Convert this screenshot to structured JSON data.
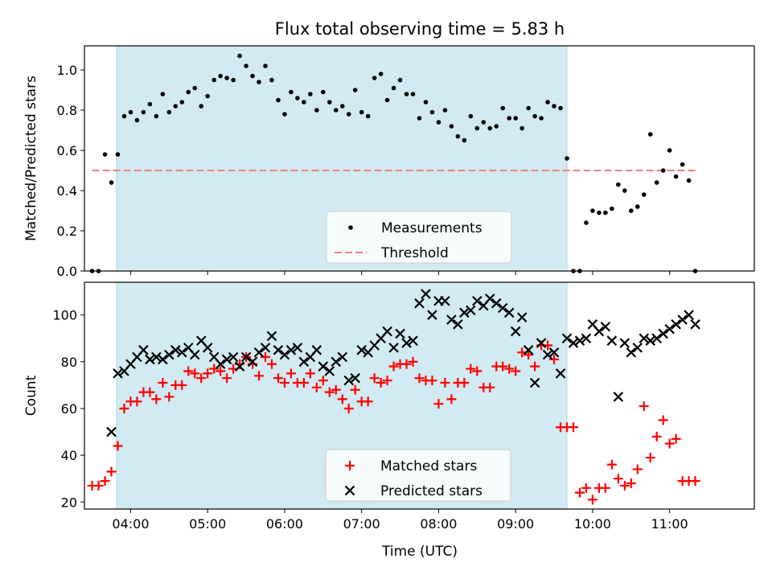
{
  "title": "Flux total observing time = 5.83 h",
  "xlabel": "Time (UTC)",
  "x_tick_labels": [
    "04:00",
    "05:00",
    "06:00",
    "07:00",
    "08:00",
    "09:00",
    "10:00",
    "11:00"
  ],
  "colors": {
    "shade": "#add8e6",
    "matched": "#ff0000",
    "predicted": "#000000",
    "threshold": "#f08080",
    "measurements": "#000000"
  },
  "chart_data": [
    {
      "type": "scatter",
      "ylabel": "Matched/Predicted stars",
      "xlim": [
        "03:24",
        "12:06"
      ],
      "ylim": [
        0,
        1.12
      ],
      "y_ticks": [
        "0.0",
        "0.2",
        "0.4",
        "0.6",
        "0.8",
        "1.0"
      ],
      "shaded_interval": [
        "03:49",
        "09:40"
      ],
      "legend": {
        "placement": "lower-center",
        "entries": [
          "Measurements",
          "Threshold"
        ]
      },
      "threshold": {
        "name": "Threshold",
        "y": 0.5,
        "x_range": [
          "03:30",
          "11:22"
        ]
      },
      "series": [
        {
          "name": "Measurements",
          "x": [
            "03:30",
            "03:35",
            "03:40",
            "03:45",
            "03:50",
            "03:55",
            "04:00",
            "04:05",
            "04:10",
            "04:15",
            "04:20",
            "04:25",
            "04:30",
            "04:35",
            "04:40",
            "04:45",
            "04:50",
            "04:55",
            "05:00",
            "05:05",
            "05:10",
            "05:15",
            "05:20",
            "05:25",
            "05:30",
            "05:35",
            "05:40",
            "05:45",
            "05:50",
            "05:55",
            "06:00",
            "06:05",
            "06:10",
            "06:15",
            "06:20",
            "06:25",
            "06:30",
            "06:35",
            "06:40",
            "06:45",
            "06:50",
            "06:55",
            "07:00",
            "07:05",
            "07:10",
            "07:15",
            "07:20",
            "07:25",
            "07:30",
            "07:35",
            "07:40",
            "07:45",
            "07:50",
            "07:55",
            "08:00",
            "08:05",
            "08:10",
            "08:15",
            "08:20",
            "08:25",
            "08:30",
            "08:35",
            "08:40",
            "08:45",
            "08:50",
            "08:55",
            "09:00",
            "09:05",
            "09:10",
            "09:15",
            "09:20",
            "09:25",
            "09:30",
            "09:35",
            "09:40",
            "09:45",
            "09:50",
            "09:55",
            "10:00",
            "10:05",
            "10:10",
            "10:15",
            "10:20",
            "10:25",
            "10:30",
            "10:35",
            "10:40",
            "10:45",
            "10:50",
            "10:55",
            "11:00",
            "11:05",
            "11:10",
            "11:15",
            "11:20"
          ],
          "y": [
            0.0,
            0.0,
            0.58,
            0.44,
            0.58,
            0.77,
            0.79,
            0.75,
            0.79,
            0.83,
            0.77,
            0.88,
            0.79,
            0.82,
            0.84,
            0.89,
            0.91,
            0.82,
            0.87,
            0.95,
            0.97,
            0.96,
            0.95,
            1.07,
            1.02,
            0.97,
            0.94,
            1.02,
            0.95,
            0.85,
            0.78,
            0.89,
            0.86,
            0.84,
            0.88,
            0.8,
            0.89,
            0.84,
            0.8,
            0.82,
            0.78,
            0.9,
            0.79,
            0.77,
            0.96,
            0.98,
            0.85,
            0.91,
            0.95,
            0.88,
            0.88,
            0.76,
            0.84,
            0.79,
            0.74,
            0.8,
            0.72,
            0.67,
            0.65,
            0.77,
            0.71,
            0.74,
            0.71,
            0.72,
            0.81,
            0.76,
            0.76,
            0.71,
            0.81,
            0.77,
            0.76,
            0.84,
            0.82,
            0.81,
            0.56,
            0.0,
            0.0,
            0.24,
            0.3,
            0.29,
            0.29,
            0.31,
            0.43,
            0.4,
            0.3,
            0.32,
            0.38,
            0.68,
            0.44,
            0.5,
            0.6,
            0.47,
            0.53,
            0.45,
            0.0
          ]
        }
      ]
    },
    {
      "type": "scatter",
      "ylabel": "Count",
      "xlabel": "Time (UTC)",
      "xlim": [
        "03:24",
        "12:06"
      ],
      "ylim": [
        17,
        114
      ],
      "y_ticks": [
        "20",
        "40",
        "60",
        "80",
        "100"
      ],
      "shaded_interval": [
        "03:49",
        "09:40"
      ],
      "legend": {
        "placement": "lower-center",
        "entries": [
          "Matched stars",
          "Predicted stars"
        ]
      },
      "series": [
        {
          "name": "Matched stars",
          "marker": "+",
          "x": [
            "03:30",
            "03:35",
            "03:40",
            "03:45",
            "03:50",
            "03:55",
            "04:00",
            "04:05",
            "04:10",
            "04:15",
            "04:20",
            "04:25",
            "04:30",
            "04:35",
            "04:40",
            "04:45",
            "04:50",
            "04:55",
            "05:00",
            "05:05",
            "05:10",
            "05:15",
            "05:20",
            "05:25",
            "05:30",
            "05:35",
            "05:40",
            "05:45",
            "05:50",
            "05:55",
            "06:00",
            "06:05",
            "06:10",
            "06:15",
            "06:20",
            "06:25",
            "06:30",
            "06:35",
            "06:40",
            "06:45",
            "06:50",
            "06:55",
            "07:00",
            "07:05",
            "07:10",
            "07:15",
            "07:20",
            "07:25",
            "07:30",
            "07:35",
            "07:40",
            "07:45",
            "07:50",
            "07:55",
            "08:00",
            "08:05",
            "08:10",
            "08:15",
            "08:20",
            "08:25",
            "08:30",
            "08:35",
            "08:40",
            "08:45",
            "08:50",
            "08:55",
            "09:00",
            "09:05",
            "09:10",
            "09:15",
            "09:20",
            "09:25",
            "09:30",
            "09:35",
            "09:40",
            "09:45",
            "09:50",
            "09:55",
            "10:00",
            "10:05",
            "10:10",
            "10:15",
            "10:20",
            "10:25",
            "10:30",
            "10:35",
            "10:40",
            "10:45",
            "10:50",
            "10:55",
            "11:00",
            "11:05",
            "11:10",
            "11:15",
            "11:20"
          ],
          "y": [
            27,
            27,
            29,
            33,
            44,
            60,
            63,
            63,
            67,
            67,
            64,
            71,
            65,
            70,
            70,
            76,
            75,
            73,
            75,
            77,
            76,
            73,
            77,
            79,
            82,
            79,
            74,
            82,
            79,
            73,
            71,
            75,
            71,
            71,
            75,
            69,
            72,
            67,
            68,
            64,
            60,
            68,
            63,
            63,
            73,
            71,
            72,
            78,
            79,
            79,
            80,
            73,
            72,
            72,
            62,
            71,
            64,
            71,
            71,
            77,
            76,
            69,
            69,
            78,
            78,
            77,
            76,
            84,
            83,
            78,
            87,
            87,
            81,
            52,
            52,
            52,
            24,
            26,
            21,
            26,
            26,
            36,
            30,
            27,
            28,
            34,
            61,
            39,
            48,
            55,
            45,
            47,
            29,
            29,
            29
          ]
        },
        {
          "name": "Predicted stars",
          "marker": "x",
          "x": [
            "03:45",
            "03:50",
            "03:55",
            "04:00",
            "04:05",
            "04:10",
            "04:15",
            "04:20",
            "04:25",
            "04:30",
            "04:35",
            "04:40",
            "04:45",
            "04:50",
            "04:55",
            "05:00",
            "05:05",
            "05:10",
            "05:15",
            "05:20",
            "05:25",
            "05:30",
            "05:35",
            "05:40",
            "05:45",
            "05:50",
            "05:55",
            "06:00",
            "06:05",
            "06:10",
            "06:15",
            "06:20",
            "06:25",
            "06:30",
            "06:35",
            "06:40",
            "06:45",
            "06:50",
            "06:55",
            "07:00",
            "07:05",
            "07:10",
            "07:15",
            "07:20",
            "07:25",
            "07:30",
            "07:35",
            "07:40",
            "07:45",
            "07:50",
            "07:55",
            "08:00",
            "08:05",
            "08:10",
            "08:15",
            "08:20",
            "08:25",
            "08:30",
            "08:35",
            "08:40",
            "08:45",
            "08:50",
            "08:55",
            "09:00",
            "09:05",
            "09:10",
            "09:15",
            "09:20",
            "09:25",
            "09:30",
            "09:35",
            "09:40",
            "09:45",
            "09:50",
            "09:55",
            "10:00",
            "10:05",
            "10:10",
            "10:15",
            "10:20",
            "10:25",
            "10:30",
            "10:35",
            "10:40",
            "10:45",
            "10:50",
            "10:55",
            "11:00",
            "11:05",
            "11:10",
            "11:15",
            "11:20"
          ],
          "y": [
            50,
            75,
            76,
            79,
            82,
            85,
            81,
            82,
            81,
            83,
            85,
            84,
            86,
            83,
            89,
            86,
            82,
            79,
            81,
            82,
            78,
            82,
            80,
            84,
            86,
            91,
            85,
            83,
            85,
            86,
            80,
            82,
            85,
            78,
            76,
            80,
            82,
            72,
            73,
            85,
            84,
            87,
            90,
            93,
            86,
            92,
            88,
            89,
            105,
            109,
            100,
            106,
            106,
            98,
            96,
            101,
            102,
            106,
            104,
            107,
            105,
            103,
            101,
            93,
            99,
            85,
            71,
            88,
            83,
            84,
            75,
            90,
            88,
            89,
            90,
            96,
            93,
            95,
            89,
            65,
            88,
            84,
            86,
            90,
            89,
            90,
            92,
            94,
            96,
            98,
            100,
            96
          ]
        }
      ]
    }
  ]
}
